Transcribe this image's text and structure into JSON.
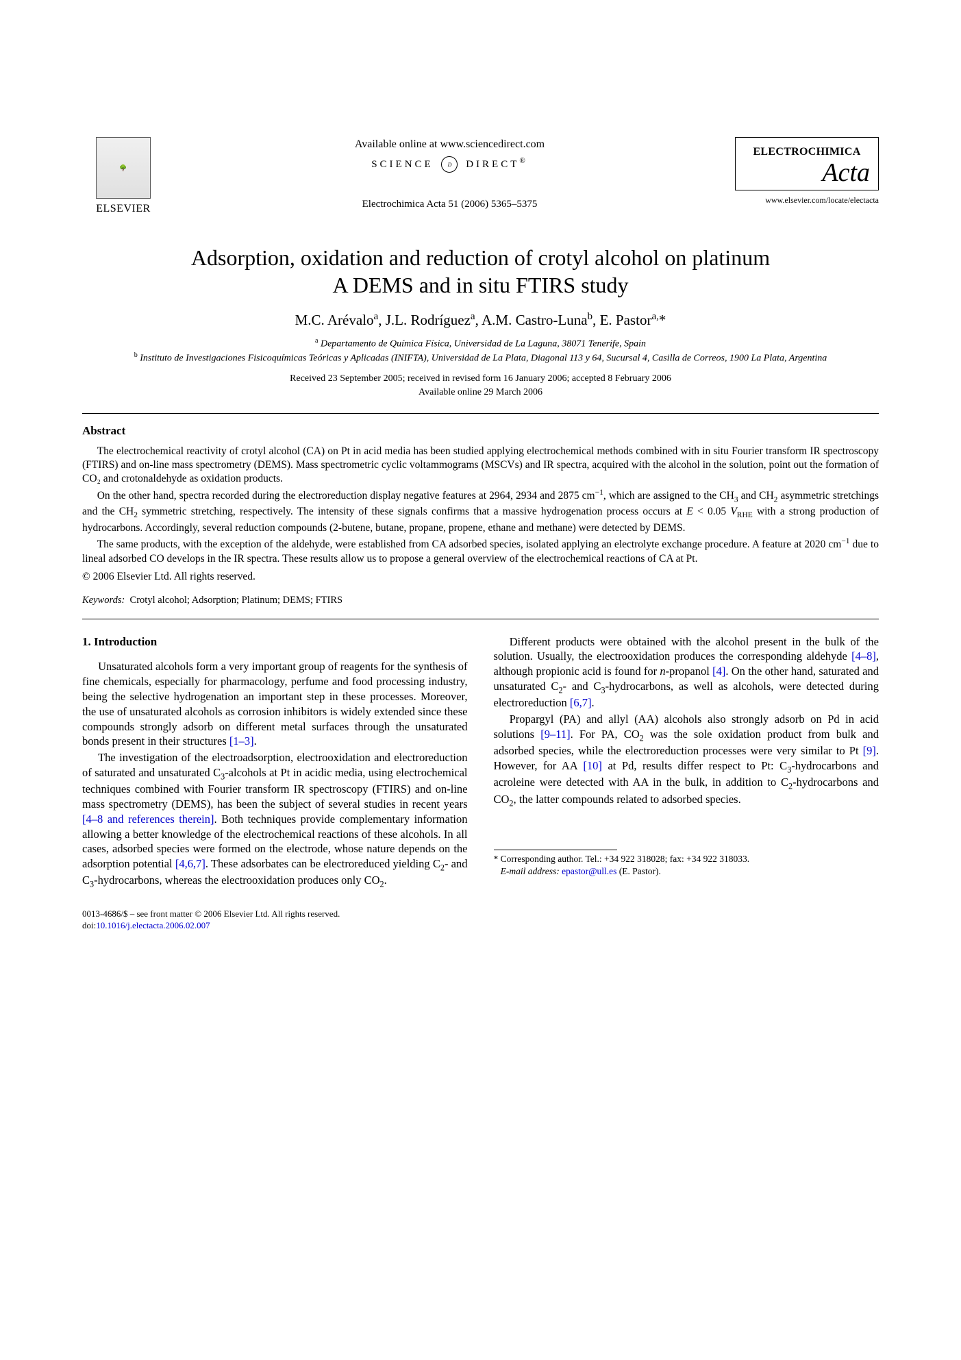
{
  "header": {
    "publisher": "ELSEVIER",
    "available_online": "Available online at www.sciencedirect.com",
    "science_direct": "SCIENCE DIRECT®",
    "journal_reference": "Electrochimica Acta 51 (2006) 5365–5375",
    "journal_name": "ELECTROCHIMICA",
    "journal_acta": "Acta",
    "journal_url": "www.elsevier.com/locate/electacta"
  },
  "title": {
    "line1": "Adsorption, oxidation and reduction of crotyl alcohol on platinum",
    "line2": "A DEMS and in situ FTIRS study"
  },
  "authors_html": "M.C. Arévalo<span class='sup'>a</span>, J.L. Rodríguez<span class='sup'>a</span>, A.M. Castro-Luna<span class='sup'>b</span>, E. Pastor<span class='sup'>a,</span>*",
  "affiliations": {
    "a": "Departamento de Química Física, Universidad de La Laguna, 38071 Tenerife, Spain",
    "b": "Instituto de Investigaciones Fisicoquímicas Teóricas y Aplicadas (INIFTA), Universidad de La Plata, Diagonal 113 y 64, Sucursal 4, Casilla de Correos, 1900 La Plata, Argentina"
  },
  "dates": {
    "line1": "Received 23 September 2005; received in revised form 16 January 2006; accepted 8 February 2006",
    "line2": "Available online 29 March 2006"
  },
  "abstract": {
    "heading": "Abstract",
    "p1": "The electrochemical reactivity of crotyl alcohol (CA) on Pt in acid media has been studied applying electrochemical methods combined with in situ Fourier transform IR spectroscopy (FTIRS) and on-line mass spectrometry (DEMS). Mass spectrometric cyclic voltammograms (MSCVs) and IR spectra, acquired with the alcohol in the solution, point out the formation of CO₂ and crotonaldehyde as oxidation products.",
    "p2_html": "On the other hand, spectra recorded during the electroreduction display negative features at 2964, 2934 and 2875 cm<span class='supn'>−1</span>, which are assigned to the CH<span class='sub'>3</span> and CH<span class='sub'>2</span> asymmetric stretchings and the CH<span class='sub'>2</span> symmetric stretching, respectively. The intensity of these signals confirms that a massive hydrogenation process occurs at <span class='ital'>E</span> < 0.05 <span class='ital'>V</span><span class='sub'>RHE</span> with a strong production of hydrocarbons. Accordingly, several reduction compounds (2-butene, butane, propane, propene, ethane and methane) were detected by DEMS.",
    "p3_html": "The same products, with the exception of the aldehyde, were established from CA adsorbed species, isolated applying an electrolyte exchange procedure. A feature at 2020 cm<span class='supn'>−1</span> due to lineal adsorbed CO develops in the IR spectra. These results allow us to propose a general overview of the electrochemical reactions of CA at Pt.",
    "copyright": "© 2006 Elsevier Ltd. All rights reserved."
  },
  "keywords": {
    "label": "Keywords:",
    "text": "Crotyl alcohol; Adsorption; Platinum; DEMS; FTIRS"
  },
  "section1": {
    "heading": "1.  Introduction",
    "p1_html": "Unsaturated alcohols form a very important group of reagents for the synthesis of fine chemicals, especially for pharmacology, perfume and food processing industry, being the selective hydrogenation an important step in these processes. Moreover, the use of unsaturated alcohols as corrosion inhibitors is widely extended since these compounds strongly adsorb on different metal surfaces through the unsaturated bonds present in their structures <span class='ref-link'>[1–3]</span>.",
    "p2_html": "The investigation of the electroadsorption, electrooxidation and electroreduction of saturated and unsaturated C<span class='sub'>3</span>-alcohols at Pt in acidic media, using electrochemical techniques combined with Fourier transform IR spectroscopy (FTIRS) and on-line mass spectrometry (DEMS), has been the subject of several studies in recent years <span class='ref-link'>[4–8 and references therein]</span>. Both techniques provide complementary information allowing a better knowledge of the electrochemical reactions of these alcohols. In all cases, adsorbed species were formed on the electrode, whose nature depends on the adsorption potential <span class='ref-link'>[4,6,7]</span>. These adsorbates can be electroreduced yielding C<span class='sub'>2</span>- and C<span class='sub'>3</span>-hydrocarbons, whereas the electrooxidation produces only CO<span class='sub'>2</span>.",
    "p3_html": "Different products were obtained with the alcohol present in the bulk of the solution. Usually, the electrooxidation produces the corresponding aldehyde <span class='ref-link'>[4–8]</span>, although propionic acid is found for <span class='ital'>n</span>-propanol <span class='ref-link'>[4]</span>. On the other hand, saturated and unsaturated C<span class='sub'>2</span>- and C<span class='sub'>3</span>-hydrocarbons, as well as alcohols, were detected during electroreduction <span class='ref-link'>[6,7]</span>.",
    "p4_html": "Propargyl (PA) and allyl (AA) alcohols also strongly adsorb on Pd in acid solutions <span class='ref-link'>[9–11]</span>. For PA, CO<span class='sub'>2</span> was the sole oxidation product from bulk and adsorbed species, while the electroreduction processes were very similar to Pt <span class='ref-link'>[9]</span>. However, for AA <span class='ref-link'>[10]</span> at Pd, results differ respect to Pt: C<span class='sub'>3</span>-hydrocarbons and acroleine were detected with AA in the bulk, in addition to C<span class='sub'>2</span>-hydrocarbons and CO<span class='sub'>2</span>, the latter compounds related to adsorbed species."
  },
  "footnote": {
    "corr": "* Corresponding author. Tel.: +34 922 318028; fax: +34 922 318033.",
    "email_label": "E-mail address:",
    "email": "epastor@ull.es",
    "email_suffix": "(E. Pastor)."
  },
  "footer": {
    "line1": "0013-4686/$ – see front matter © 2006 Elsevier Ltd. All rights reserved.",
    "doi_label": "doi:",
    "doi": "10.1016/j.electacta.2006.02.007"
  },
  "colors": {
    "link": "#0000cc",
    "text": "#000000",
    "bg": "#ffffff"
  }
}
